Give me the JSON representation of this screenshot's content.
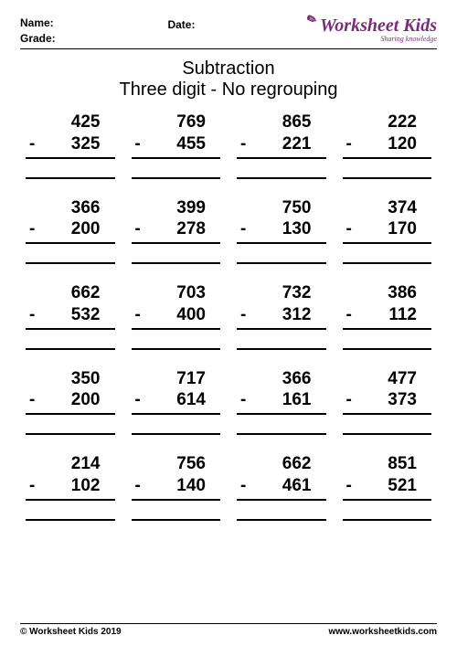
{
  "header": {
    "name_label": "Name:",
    "grade_label": "Grade:",
    "date_label": "Date:",
    "logo_text": "Worksheet Kids",
    "logo_tagline": "Sharing knowledge"
  },
  "title": {
    "main": "Subtraction",
    "sub": "Three digit - No regrouping"
  },
  "problems": [
    {
      "minuend": "425",
      "subtrahend": "325"
    },
    {
      "minuend": "769",
      "subtrahend": "455"
    },
    {
      "minuend": "865",
      "subtrahend": "221"
    },
    {
      "minuend": "222",
      "subtrahend": "120"
    },
    {
      "minuend": "366",
      "subtrahend": "200"
    },
    {
      "minuend": "399",
      "subtrahend": "278"
    },
    {
      "minuend": "750",
      "subtrahend": "130"
    },
    {
      "minuend": "374",
      "subtrahend": "170"
    },
    {
      "minuend": "662",
      "subtrahend": "532"
    },
    {
      "minuend": "703",
      "subtrahend": "400"
    },
    {
      "minuend": "732",
      "subtrahend": "312"
    },
    {
      "minuend": "386",
      "subtrahend": "112"
    },
    {
      "minuend": "350",
      "subtrahend": "200"
    },
    {
      "minuend": "717",
      "subtrahend": "614"
    },
    {
      "minuend": "366",
      "subtrahend": "161"
    },
    {
      "minuend": "477",
      "subtrahend": "373"
    },
    {
      "minuend": "214",
      "subtrahend": "102"
    },
    {
      "minuend": "756",
      "subtrahend": "140"
    },
    {
      "minuend": "662",
      "subtrahend": "461"
    },
    {
      "minuend": "851",
      "subtrahend": "521"
    }
  ],
  "footer": {
    "copyright": "© Worksheet Kids 2019",
    "url": "www.worksheetkids.com"
  },
  "style": {
    "rows": 5,
    "cols": 4,
    "minus_sign": "-",
    "font_color": "#000000",
    "logo_color": "#7a2c7a",
    "background": "#ffffff"
  }
}
